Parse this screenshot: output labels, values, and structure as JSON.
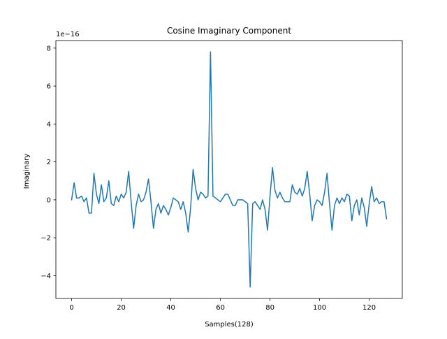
{
  "chart_data": {
    "type": "line",
    "title": "Cosine Imaginary Component",
    "xlabel": "Samples(128)",
    "ylabel": "Imaginary",
    "y_offset_text": "1e−16",
    "y_scale_factor": 1e-16,
    "xlim": [
      -6.35,
      133.35
    ],
    "ylim": [
      -5.2,
      8.4
    ],
    "xticks": [
      0,
      20,
      40,
      60,
      80,
      100,
      120
    ],
    "yticks": [
      -4,
      -2,
      0,
      2,
      4,
      6,
      8
    ],
    "xtick_labels": [
      "0",
      "20",
      "40",
      "60",
      "80",
      "100",
      "120"
    ],
    "ytick_labels": [
      "−4",
      "−2",
      "0",
      "2",
      "4",
      "6",
      "8"
    ],
    "grid": false,
    "legend": "none",
    "series": [
      {
        "color": "#1f77b4",
        "x": [
          0,
          1,
          2,
          3,
          4,
          5,
          6,
          7,
          8,
          9,
          10,
          11,
          12,
          13,
          14,
          15,
          16,
          17,
          18,
          19,
          20,
          21,
          22,
          23,
          24,
          25,
          26,
          27,
          28,
          29,
          30,
          31,
          32,
          33,
          34,
          35,
          36,
          37,
          38,
          39,
          40,
          41,
          42,
          43,
          44,
          45,
          46,
          47,
          48,
          49,
          50,
          51,
          52,
          53,
          54,
          55,
          56,
          57,
          58,
          59,
          60,
          61,
          62,
          63,
          64,
          65,
          66,
          67,
          68,
          69,
          70,
          71,
          72,
          73,
          74,
          75,
          76,
          77,
          78,
          79,
          80,
          81,
          82,
          83,
          84,
          85,
          86,
          87,
          88,
          89,
          90,
          91,
          92,
          93,
          94,
          95,
          96,
          97,
          98,
          99,
          100,
          101,
          102,
          103,
          104,
          105,
          106,
          107,
          108,
          109,
          110,
          111,
          112,
          113,
          114,
          115,
          116,
          117,
          118,
          119,
          120,
          121,
          122,
          123,
          124,
          125,
          126,
          127
        ],
        "values": [
          0.0,
          0.9,
          0.1,
          0.1,
          0.2,
          -0.1,
          0.1,
          -0.7,
          -0.7,
          1.4,
          0.3,
          -0.2,
          0.8,
          -0.1,
          0.1,
          1.0,
          -0.2,
          -0.3,
          0.2,
          -0.1,
          0.3,
          0.1,
          0.4,
          1.5,
          -0.1,
          -1.5,
          -0.3,
          0.3,
          -0.1,
          0.0,
          0.4,
          1.1,
          -0.1,
          -1.5,
          -0.5,
          -0.2,
          -0.7,
          -0.3,
          -0.5,
          -0.8,
          -0.4,
          0.1,
          0.0,
          -0.1,
          -0.5,
          -0.1,
          -0.7,
          -1.7,
          -0.4,
          1.6,
          0.6,
          0.0,
          0.4,
          0.3,
          0.1,
          0.2,
          7.8,
          0.2,
          0.1,
          0.0,
          -0.1,
          0.1,
          0.3,
          0.3,
          0.0,
          -0.3,
          -0.3,
          0.0,
          0.0,
          0.0,
          -0.1,
          -0.2,
          -4.6,
          -0.2,
          -0.1,
          -0.3,
          -0.5,
          0.0,
          -0.5,
          -1.6,
          0.2,
          1.7,
          0.5,
          0.1,
          0.4,
          0.1,
          -0.1,
          -0.1,
          -0.1,
          0.8,
          0.4,
          0.3,
          0.6,
          0.2,
          0.6,
          1.5,
          0.3,
          -1.1,
          -0.3,
          0.0,
          -0.1,
          -0.3,
          0.4,
          1.4,
          -0.2,
          -1.6,
          -0.3,
          0.1,
          -0.2,
          0.1,
          -0.1,
          0.3,
          0.2,
          -1.1,
          -0.3,
          0.0,
          -0.8,
          0.1,
          -0.4,
          -1.4,
          -0.2,
          0.7,
          -0.1,
          0.1,
          -0.2,
          -0.1,
          -0.1,
          -1.0
        ]
      }
    ]
  }
}
